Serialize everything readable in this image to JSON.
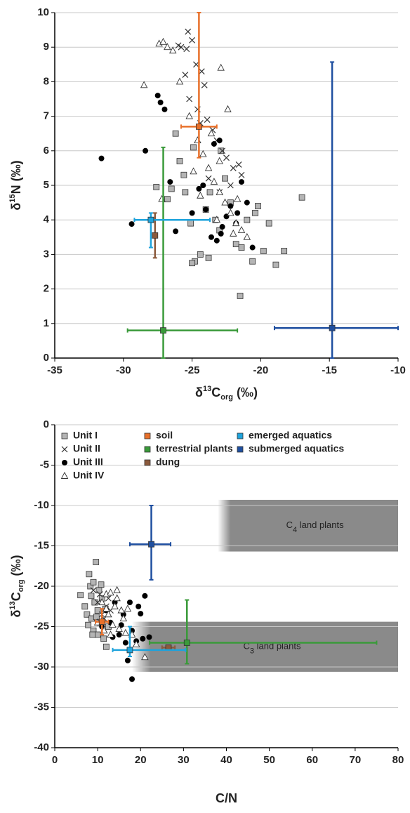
{
  "chart_data": [
    {
      "type": "scatter",
      "x_label": [
        "δ",
        "13",
        "C",
        "org",
        " (‰)"
      ],
      "y_label": [
        "δ",
        "15",
        "N (‰)"
      ],
      "xlim": [
        -35,
        -10
      ],
      "ylim": [
        0,
        10
      ],
      "xticks": [
        -35,
        -30,
        -25,
        -20,
        -15,
        -10
      ],
      "yticks": [
        0,
        1,
        2,
        3,
        4,
        5,
        6,
        7,
        8,
        9,
        10
      ],
      "grid": true,
      "series": [
        {
          "marker": "square",
          "color": "#b4b4b4",
          "x": [
            -26.8,
            -26.2,
            -25.9,
            -25.5,
            -25.1,
            -24.8,
            -24.4,
            -24.0,
            -23.7,
            -23.3,
            -23.0,
            -22.6,
            -22.2,
            -21.8,
            -21.4,
            -21.0,
            -20.6,
            -20.2,
            -19.8,
            -19.4,
            -18.9,
            -18.3,
            -17.0,
            -21.5,
            -22.9,
            -24.9,
            -25.6,
            -26.5,
            -20.4,
            -23.8,
            -27.6,
            -25.0
          ],
          "values": [
            4.6,
            6.5,
            5.7,
            4.8,
            3.9,
            2.8,
            3.0,
            4.3,
            4.8,
            4.0,
            3.7,
            5.2,
            4.5,
            3.3,
            3.2,
            4.0,
            2.8,
            4.4,
            3.1,
            3.9,
            2.7,
            3.1,
            4.65,
            1.8,
            6.0,
            6.1,
            5.3,
            4.9,
            4.2,
            2.9,
            4.95,
            2.75
          ]
        },
        {
          "marker": "cross",
          "color": "#333333",
          "x": [
            -25.3,
            -25.0,
            -24.7,
            -24.3,
            -24.1,
            -25.5,
            -25.2,
            -24.6,
            -23.9,
            -23.5,
            -23.2,
            -22.8,
            -22.5,
            -22.0,
            -21.6,
            -23.8,
            -24.4,
            -25.8,
            -26.0,
            -25.4,
            -22.2,
            -21.4,
            -23.0
          ],
          "values": [
            9.45,
            9.2,
            8.5,
            8.3,
            7.9,
            8.2,
            7.5,
            7.2,
            6.9,
            6.6,
            6.3,
            6.0,
            5.8,
            5.5,
            5.6,
            5.2,
            6.8,
            9.0,
            9.05,
            8.95,
            5.0,
            5.3,
            4.8
          ]
        },
        {
          "marker": "circle",
          "color": "#000000",
          "x": [
            -31.6,
            -29.4,
            -28.4,
            -27.5,
            -27.3,
            -27.0,
            -26.6,
            -26.2,
            -25.0,
            -24.5,
            -24.0,
            -23.6,
            -23.2,
            -22.8,
            -22.5,
            -22.2,
            -21.8,
            -21.4,
            -21.0,
            -20.6,
            -23.0,
            -23.4,
            -22.9,
            -24.2,
            -21.7
          ],
          "values": [
            5.78,
            3.88,
            6.0,
            7.6,
            7.4,
            7.2,
            5.1,
            3.67,
            4.2,
            4.9,
            4.3,
            3.5,
            3.4,
            3.8,
            4.1,
            4.4,
            3.9,
            5.1,
            4.5,
            3.2,
            6.3,
            6.2,
            3.6,
            5.0,
            4.2
          ]
        },
        {
          "marker": "triangle",
          "color": "#333333",
          "x": [
            -28.5,
            -27.4,
            -27.1,
            -26.8,
            -26.4,
            -25.9,
            -25.2,
            -24.6,
            -24.2,
            -23.8,
            -23.4,
            -23.0,
            -22.6,
            -22.2,
            -21.8,
            -21.4,
            -21.0,
            -22.4,
            -23.6,
            -24.9,
            -22.9,
            -23.2,
            -21.7,
            -22.0,
            -23.0,
            -24.4,
            -27.2
          ],
          "values": [
            7.9,
            9.1,
            9.15,
            9.0,
            8.9,
            8.0,
            7.0,
            6.3,
            5.9,
            5.5,
            5.1,
            4.8,
            4.5,
            4.2,
            3.9,
            3.7,
            3.5,
            7.2,
            6.5,
            5.4,
            8.4,
            4.0,
            4.6,
            3.6,
            5.7,
            4.7,
            4.6
          ]
        },
        {
          "marker": "square",
          "color": "#e8702a",
          "x": [
            -24.5
          ],
          "values": [
            6.7
          ],
          "xerr": [
            [
              1.3,
              1.3
            ]
          ],
          "yerr": [
            [
              0.9,
              3.3
            ]
          ]
        },
        {
          "marker": "square",
          "color": "#3a9a3a",
          "x": [
            -27.1
          ],
          "values": [
            0.8
          ],
          "xerr": [
            [
              2.6,
              5.4
            ]
          ],
          "yerr": [
            [
              0.8,
              5.3
            ]
          ]
        },
        {
          "marker": "square",
          "color": "#8b5a3c",
          "x": [
            -27.7
          ],
          "values": [
            3.55
          ],
          "xerr": [
            [
              0.1,
              0.1
            ]
          ],
          "yerr": [
            [
              0.65,
              0.65
            ]
          ]
        },
        {
          "marker": "square",
          "color": "#1ea3dc",
          "x": [
            -28.0
          ],
          "values": [
            4.0
          ],
          "xerr": [
            [
              1.2,
              4.3
            ]
          ],
          "yerr": [
            [
              0.8,
              0.2
            ]
          ]
        },
        {
          "marker": "square",
          "color": "#1f4fa0",
          "x": [
            -14.8
          ],
          "values": [
            0.87
          ],
          "xerr": [
            [
              4.2,
              4.8
            ]
          ],
          "yerr": [
            [
              0.87,
              7.7
            ]
          ]
        }
      ]
    },
    {
      "type": "scatter",
      "x_label": [
        "C/N"
      ],
      "y_label": [
        "δ",
        "13",
        "C",
        "org",
        " (‰)"
      ],
      "xlim": [
        0,
        80
      ],
      "ylim": [
        -40,
        0
      ],
      "xticks": [
        0,
        10,
        20,
        30,
        40,
        50,
        60,
        70,
        80
      ],
      "yticks": [
        -40,
        -35,
        -30,
        -25,
        -20,
        -15,
        -10,
        -5,
        0
      ],
      "grid": true,
      "regions": [
        {
          "label": [
            "C",
            "4",
            " land plants"
          ],
          "x": [
            38,
            80
          ],
          "y": [
            -15.7,
            -9.3
          ]
        },
        {
          "label": [
            "C",
            "3",
            " land plants"
          ],
          "x": [
            18,
            80
          ],
          "y": [
            -30.6,
            -24.4
          ]
        }
      ],
      "series": [
        {
          "name": "Unit I",
          "marker": "square",
          "color": "#b4b4b4",
          "x": [
            6,
            7,
            7.5,
            8,
            8.3,
            8.6,
            9,
            9,
            9.3,
            9.6,
            10,
            10,
            10.3,
            10.6,
            11,
            11.4,
            12,
            12.5,
            8.8,
            9.7,
            8.5,
            7.8,
            10.8,
            11.8
          ],
          "values": [
            -21.1,
            -22.5,
            -23.5,
            -18.5,
            -20,
            -24,
            -19.5,
            -25.5,
            -22,
            -17,
            -23,
            -26,
            -20.5,
            -24.5,
            -21.5,
            -26.5,
            -27.5,
            -25,
            -26,
            -23.8,
            -21.2,
            -24.8,
            -19.8,
            -22.8
          ]
        },
        {
          "name": "Unit II",
          "marker": "cross",
          "color": "#333333",
          "x": [
            9,
            10,
            11,
            12,
            10.5,
            11.5,
            12.5,
            13
          ],
          "values": [
            -20.5,
            -22,
            -23.5,
            -22.5,
            -21,
            -24,
            -21.5,
            -23
          ]
        },
        {
          "name": "Unit III",
          "marker": "circle",
          "color": "#000000",
          "x": [
            11,
            12,
            13,
            14,
            15,
            16,
            17,
            18,
            19,
            20,
            21,
            16.5,
            18,
            19.5,
            13.5,
            15.5,
            17.5,
            20.5,
            22
          ],
          "values": [
            -25,
            -23,
            -24.5,
            -22,
            -26,
            -23.5,
            -29.2,
            -31.5,
            -26.8,
            -23.4,
            -21.2,
            -27,
            -25.5,
            -22.5,
            -26.3,
            -24.8,
            -22,
            -26.5,
            -26.3
          ]
        },
        {
          "name": "Unit IV",
          "marker": "triangle",
          "color": "#333333",
          "x": [
            10,
            11,
            12,
            12.5,
            13,
            13.5,
            14,
            14.5,
            15,
            15.5,
            16,
            17,
            18,
            19,
            21,
            13,
            14.5,
            16.5,
            11.5,
            12
          ],
          "values": [
            -24.5,
            -22,
            -21,
            -23.5,
            -20.8,
            -24.8,
            -22.5,
            -21.5,
            -25.3,
            -23,
            -24,
            -22.8,
            -26,
            -27.2,
            -28.8,
            -26,
            -20.5,
            -25.8,
            -25.5,
            -22.8
          ]
        },
        {
          "name": "soil",
          "marker": "square",
          "color": "#e8702a",
          "x": [
            11
          ],
          "values": [
            -24.4
          ],
          "xerr": [
            [
              1.5,
              1.5
            ]
          ],
          "yerr": [
            [
              1.6,
              1.6
            ]
          ]
        },
        {
          "name": "terrestrial plants",
          "marker": "square",
          "color": "#3a9a3a",
          "x": [
            30.8
          ],
          "values": [
            -27
          ],
          "xerr": [
            [
              8.7,
              44.2
            ]
          ],
          "yerr": [
            [
              2.6,
              5.3
            ]
          ]
        },
        {
          "name": "dung",
          "marker": "square",
          "color": "#8b5a3c",
          "x": [
            26.5
          ],
          "values": [
            -27.6
          ],
          "xerr": [
            [
              1.5,
              1.5
            ]
          ],
          "yerr": [
            [
              0.3,
              0.3
            ]
          ]
        },
        {
          "name": "emerged aquatics",
          "marker": "square",
          "color": "#1ea3dc",
          "x": [
            17.5
          ],
          "values": [
            -27.9
          ],
          "xerr": [
            [
              4,
              13
            ]
          ],
          "yerr": [
            [
              0.8,
              2.9
            ]
          ]
        },
        {
          "name": "submerged aquatics",
          "marker": "square",
          "color": "#1f4fa0",
          "x": [
            22.5
          ],
          "values": [
            -14.8
          ],
          "xerr": [
            [
              5,
              4.5
            ]
          ],
          "yerr": [
            [
              4.4,
              4.8
            ]
          ]
        }
      ]
    }
  ]
}
